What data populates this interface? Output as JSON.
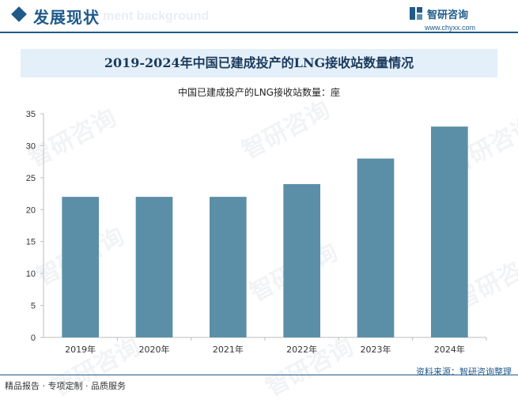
{
  "header": {
    "section_title": "发展现状",
    "ghost_text": "ment background"
  },
  "logo": {
    "name": "智研咨询",
    "url": "www.chyxx.com"
  },
  "watermark": "智研咨询",
  "chart_data": {
    "type": "bar",
    "title": "2019-2024年中国已建成投产的LNG接收站数量情况",
    "subtitle": "中国已建成投产的LNG接收站数量：座",
    "categories": [
      "2019年",
      "2020年",
      "2021年",
      "2022年",
      "2023年",
      "2024年"
    ],
    "values": [
      22,
      22,
      22,
      24,
      28,
      33
    ],
    "ylim": [
      0,
      35
    ],
    "yticks": [
      0,
      5,
      10,
      15,
      20,
      25,
      30,
      35
    ],
    "bar_color": "#5b8fa8",
    "grid": false
  },
  "footer": {
    "source": "资料来源：智研咨询整理",
    "slogan": "精品报告 · 专项定制 · 品质服务"
  },
  "colors": {
    "brand": "#1f5a8a",
    "title_band": "#e3eff9"
  }
}
